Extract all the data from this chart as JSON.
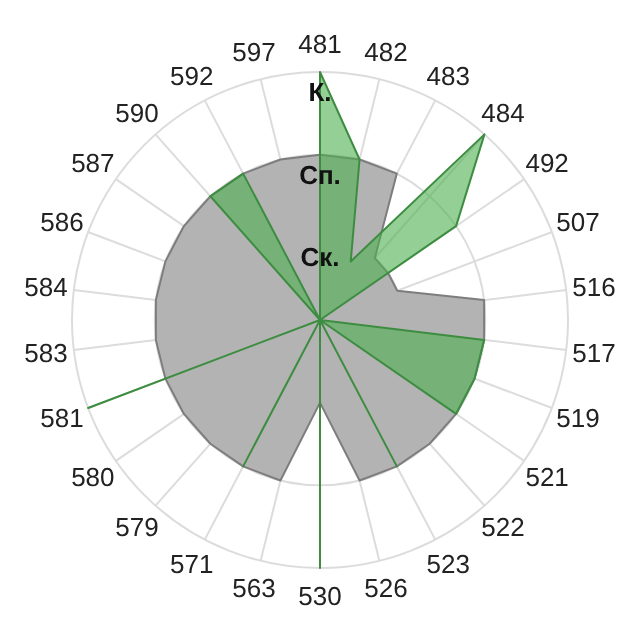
{
  "chart_data": {
    "type": "radar",
    "categories": [
      "481",
      "482",
      "483",
      "484",
      "492",
      "507",
      "516",
      "517",
      "519",
      "521",
      "522",
      "523",
      "526",
      "530",
      "563",
      "571",
      "579",
      "580",
      "581",
      "583",
      "584",
      "586",
      "587",
      "590",
      "592",
      "597"
    ],
    "series": [
      {
        "color": "#b3b3b3",
        "values": [
          2,
          2,
          2,
          1,
          1,
          1,
          2,
          2,
          2,
          2,
          2,
          2,
          2,
          1,
          2,
          2,
          2,
          2,
          2,
          2,
          2,
          2,
          2,
          2,
          2,
          2
        ]
      },
      {
        "color": "#4caf50",
        "values": [
          3,
          2,
          0.8,
          3,
          2,
          0,
          0,
          2,
          2,
          2,
          0,
          2,
          0,
          3,
          0,
          2,
          0,
          0,
          3,
          0,
          0,
          0,
          0,
          2,
          2,
          0
        ]
      }
    ],
    "ylim": [
      0,
      3
    ],
    "yticks": [
      {
        "value": 1,
        "label": "Ск."
      },
      {
        "value": 2,
        "label": "Сп."
      },
      {
        "value": 3,
        "label": "К."
      }
    ],
    "grid": true
  }
}
